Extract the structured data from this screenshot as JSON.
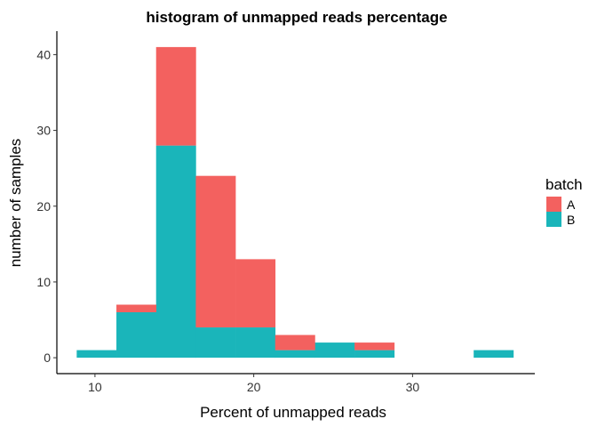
{
  "chart_data": {
    "type": "bar",
    "stacked": true,
    "title": "histogram of unmapped reads percentage",
    "xlabel": "Percent of unmapped reads",
    "ylabel": "number of samples",
    "xlim": [
      7.6,
      37.7
    ],
    "ylim": [
      -2.1,
      43.1
    ],
    "xticks": [
      10,
      20,
      30
    ],
    "yticks": [
      0,
      10,
      20,
      30,
      40
    ],
    "bin_edges": [
      8.85,
      11.35,
      13.85,
      16.35,
      18.85,
      21.35,
      23.85,
      26.35,
      28.85,
      31.35,
      33.85,
      36.35
    ],
    "series": [
      {
        "name": "B",
        "color": "#1AB5BA",
        "values": [
          1,
          6,
          28,
          4,
          4,
          1,
          2,
          1,
          0,
          0,
          1
        ]
      },
      {
        "name": "A",
        "color": "#F3615F",
        "values": [
          0,
          1,
          13,
          20,
          9,
          2,
          0,
          1,
          0,
          0,
          0
        ]
      }
    ],
    "legend": {
      "title": "batch",
      "position": "right",
      "items": [
        "A",
        "B"
      ]
    },
    "grid": false
  }
}
